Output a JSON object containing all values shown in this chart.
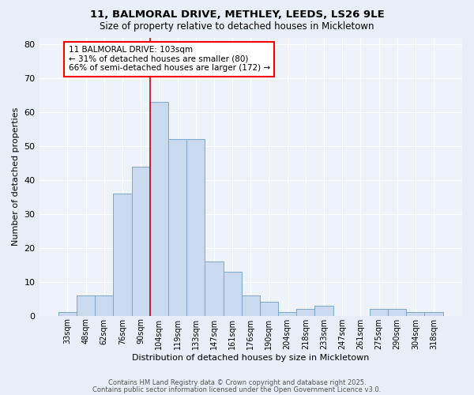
{
  "title_line1": "11, BALMORAL DRIVE, METHLEY, LEEDS, LS26 9LE",
  "title_line2": "Size of property relative to detached houses in Mickletown",
  "xlabel": "Distribution of detached houses by size in Mickletown",
  "ylabel": "Number of detached properties",
  "bar_labels": [
    "33sqm",
    "48sqm",
    "62sqm",
    "76sqm",
    "90sqm",
    "104sqm",
    "119sqm",
    "133sqm",
    "147sqm",
    "161sqm",
    "176sqm",
    "190sqm",
    "204sqm",
    "218sqm",
    "233sqm",
    "247sqm",
    "261sqm",
    "275sqm",
    "290sqm",
    "304sqm",
    "318sqm"
  ],
  "bar_values": [
    1,
    6,
    6,
    36,
    44,
    63,
    52,
    52,
    16,
    13,
    6,
    4,
    1,
    2,
    3,
    0,
    0,
    2,
    2,
    1,
    1
  ],
  "bar_color": "#c9d9ee",
  "bar_edge_color": "#7da7cc",
  "red_line_index": 5,
  "annotation_text": "11 BALMORAL DRIVE: 103sqm\n← 31% of detached houses are smaller (80)\n66% of semi-detached houses are larger (172) →",
  "annotation_box_color": "white",
  "annotation_box_edge_color": "red",
  "red_line_color": "#cc0000",
  "footer_line1": "Contains HM Land Registry data © Crown copyright and database right 2025.",
  "footer_line2": "Contains public sector information licensed under the Open Government Licence v3.0.",
  "background_color": "#e8eef7",
  "plot_bg_color": "#eef2f9",
  "ylim": [
    0,
    82
  ],
  "yticks": [
    0,
    10,
    20,
    30,
    40,
    50,
    60,
    70,
    80
  ]
}
